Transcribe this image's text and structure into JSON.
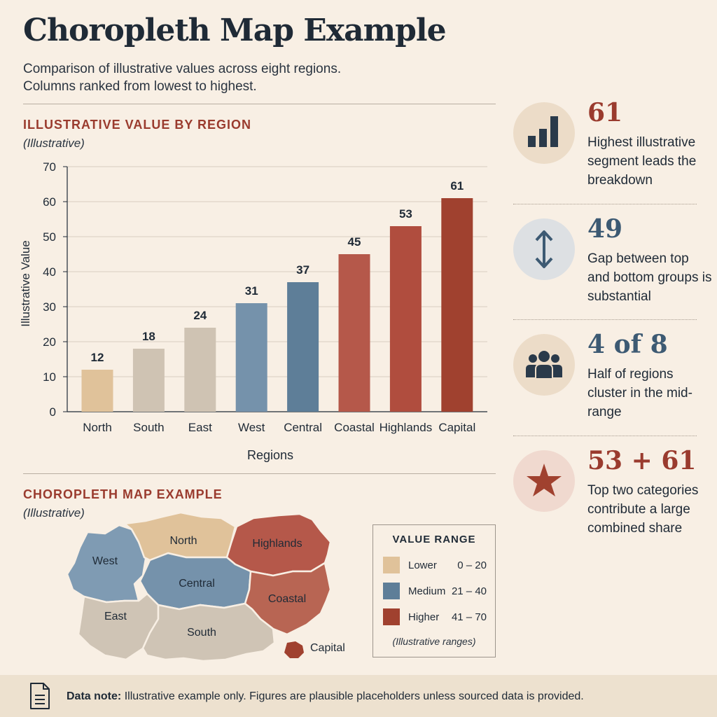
{
  "header": {
    "title": "Choropleth Map Example",
    "subtitle_line1": "Comparison of illustrative values across eight regions.",
    "subtitle_line2": "Columns ranked from lowest to highest."
  },
  "colors": {
    "lower": "#e0c29a",
    "lower_alt": "#cfc3b3",
    "medium_light": "#7592ab",
    "medium": "#5e7e98",
    "higher_light": "#b5584a",
    "higher": "#a0412f",
    "accent_red": "#9a3b2e",
    "accent_blue": "#3d5a73",
    "dark": "#1f2a36"
  },
  "chart_section": {
    "title": "ILLUSTRATIVE VALUE BY REGION",
    "note": "(Illustrative)"
  },
  "chart_data": {
    "type": "bar",
    "categories": [
      "North",
      "South",
      "East",
      "West",
      "Central",
      "Coastal",
      "Highlands",
      "Capital"
    ],
    "values": [
      12,
      18,
      24,
      31,
      37,
      45,
      53,
      61
    ],
    "bar_colors": [
      "#e0c29a",
      "#cfc3b3",
      "#cfc3b3",
      "#7592ab",
      "#5e7e98",
      "#b5584a",
      "#b04d3e",
      "#a0412f"
    ],
    "xlabel": "Regions",
    "ylabel": "Illustrative Value",
    "ylim": [
      0,
      70
    ],
    "yticks": [
      0,
      10,
      20,
      30,
      40,
      50,
      60,
      70
    ],
    "grid": true
  },
  "map_section": {
    "title": "CHOROPLETH MAP EXAMPLE",
    "note": "(Illustrative)",
    "regions": {
      "west": "West",
      "north": "North",
      "highlands": "Highlands",
      "central": "Central",
      "coastal": "Coastal",
      "east": "East",
      "south": "South",
      "capital": "Capital"
    }
  },
  "legend": {
    "title": "VALUE RANGE",
    "items": [
      {
        "label": "Lower",
        "range": "0 – 20",
        "color": "#e0c29a"
      },
      {
        "label": "Medium",
        "range": "21 – 40",
        "color": "#5e7e98"
      },
      {
        "label": "Higher",
        "range": "41 – 70",
        "color": "#a0412f"
      }
    ],
    "footnote": "(Illustrative ranges)"
  },
  "stats": [
    {
      "value": "61",
      "text": "Highest illustrative segment leads the breakdown",
      "icon": "bar-chart-icon",
      "value_color": "#9a3b2e"
    },
    {
      "value": "49",
      "text": "Gap between top and bottom groups is substantial",
      "icon": "vertical-arrows-icon",
      "value_color": "#3d5a73"
    },
    {
      "value": "4 of 8",
      "text": "Half of regions cluster in the mid-range",
      "icon": "people-group-icon",
      "value_color": "#3d5a73"
    },
    {
      "value": "53 + 61",
      "text": "Top two categories contribute a large combined share",
      "icon": "star-icon",
      "value_color": "#9a3b2e"
    }
  ],
  "footer": {
    "label": "Data note:",
    "text": "Illustrative example only. Figures are plausible placeholders unless sourced data is provided.",
    "icon": "document-icon"
  }
}
